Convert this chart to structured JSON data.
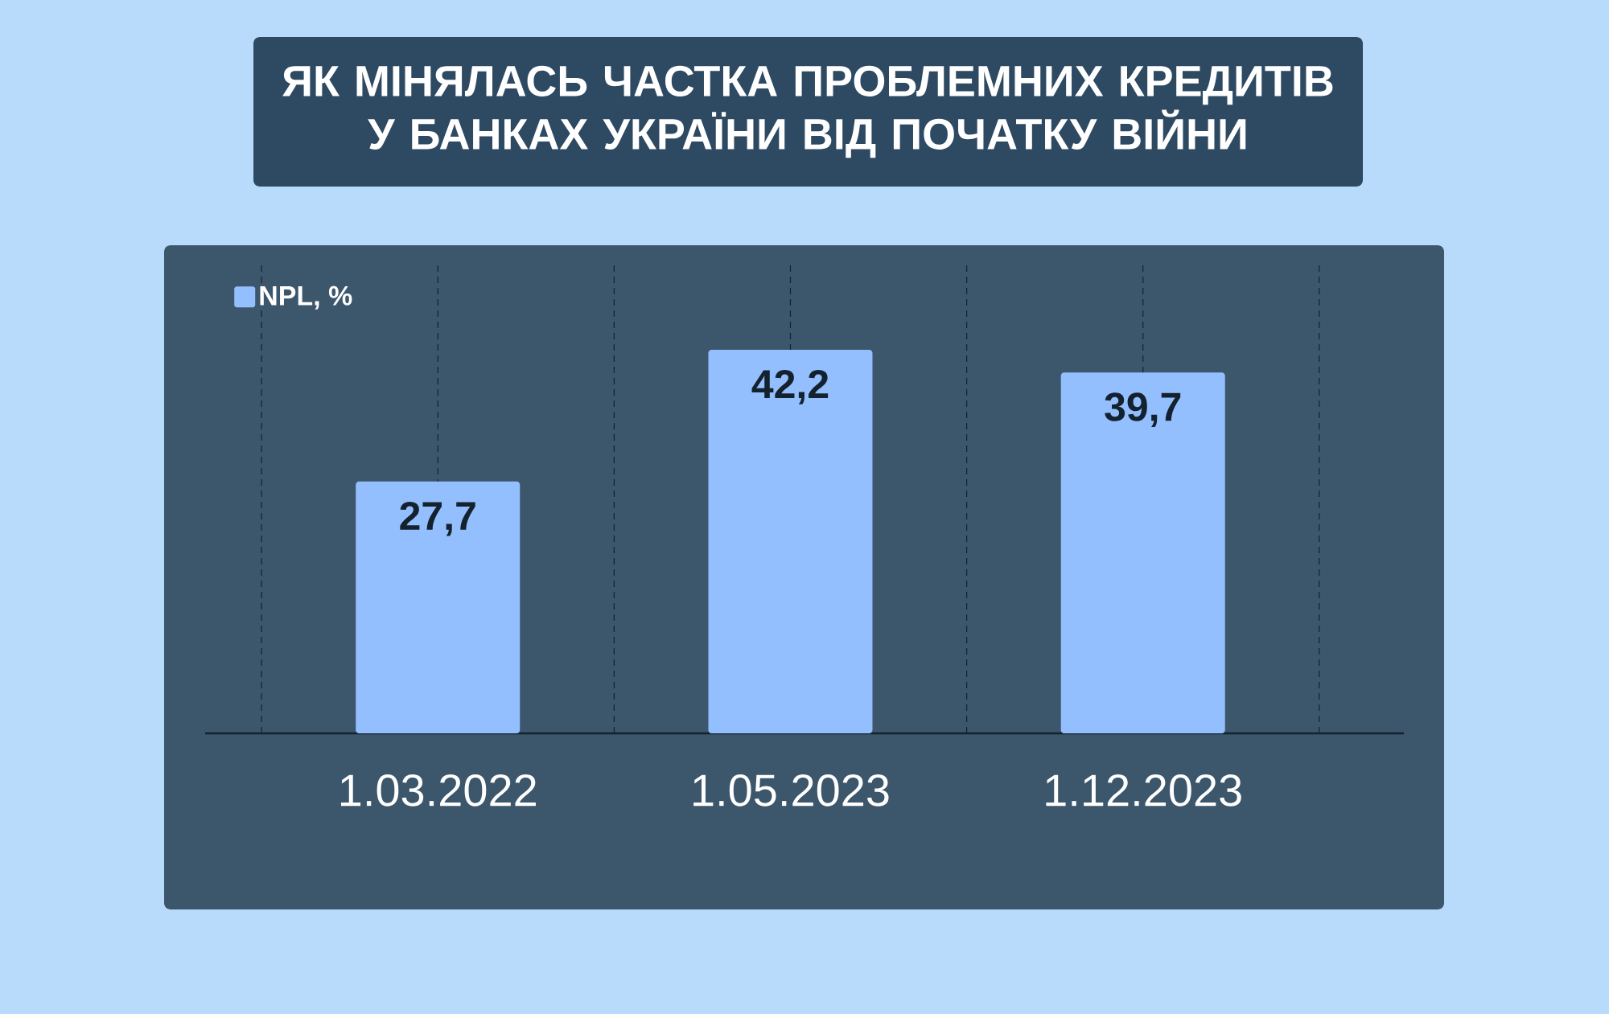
{
  "chart_data": {
    "type": "bar",
    "title": "ЯК МІНЯЛАСЬ ЧАСТКА ПРОБЛЕМНИХ КРЕДИТІВ\nУ БАНКАХ УКРАЇНИ ВІД ПОЧАТКУ ВІЙНИ",
    "categories": [
      "1.03.2022",
      "1.05.2023",
      "1.12.2023"
    ],
    "series": [
      {
        "name": "NPL, %",
        "color": "#94bfff",
        "values": [
          27.7,
          42.2,
          39.7
        ],
        "value_labels": [
          "27,7",
          "42,2",
          "39,7"
        ]
      }
    ],
    "legend": "top left",
    "grid": "x"
  }
}
